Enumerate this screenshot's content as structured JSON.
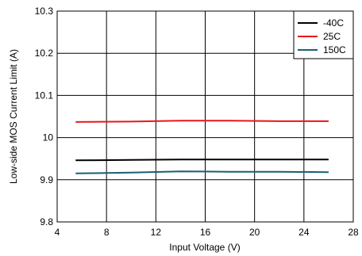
{
  "chart_data": {
    "type": "line",
    "xlabel": "Input Voltage (V)",
    "ylabel": "Low-side MOS Current Limit (A)",
    "xlim": [
      4,
      28
    ],
    "ylim": [
      9.8,
      10.3
    ],
    "xticks": [
      4,
      8,
      12,
      16,
      20,
      24,
      28
    ],
    "yticks": [
      9.8,
      9.9,
      10,
      10.1,
      10.2,
      10.3
    ],
    "xtick_labels": [
      "4",
      "8",
      "12",
      "16",
      "20",
      "24",
      "28"
    ],
    "ytick_labels": [
      "9.8",
      "9.9",
      "10",
      "10.1",
      "10.2",
      "10.3"
    ],
    "grid": true,
    "legend_position": "top-right",
    "series": [
      {
        "name": "-40C",
        "color": "#000000",
        "x": [
          5.5,
          10,
          14,
          18,
          22,
          26
        ],
        "y": [
          9.946,
          9.947,
          9.948,
          9.948,
          9.948,
          9.948
        ]
      },
      {
        "name": "25C",
        "color": "#e8161b",
        "x": [
          5.5,
          10,
          14,
          18,
          22,
          26
        ],
        "y": [
          10.037,
          10.038,
          10.04,
          10.04,
          10.039,
          10.039
        ]
      },
      {
        "name": "150C",
        "color": "#1a5f73",
        "x": [
          5.5,
          10,
          14,
          18,
          22,
          26
        ],
        "y": [
          9.915,
          9.917,
          9.92,
          9.919,
          9.919,
          9.918
        ]
      }
    ]
  }
}
